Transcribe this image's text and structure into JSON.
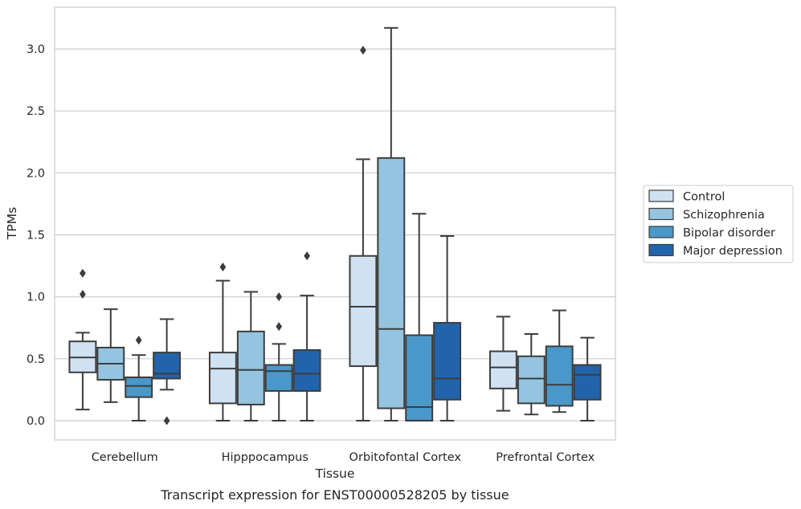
{
  "chart_data": {
    "type": "boxplot",
    "title": "",
    "caption": "Transcript expression for ENST00000528205 by tissue",
    "xlabel": "Tissue",
    "ylabel": "TPMs",
    "ylim": [
      -0.15,
      3.32
    ],
    "yticks": [
      0.0,
      0.5,
      1.0,
      1.5,
      2.0,
      2.5,
      3.0
    ],
    "ytick_labels": [
      "0.0",
      "0.5",
      "1.0",
      "1.5",
      "2.0",
      "2.5",
      "3.0"
    ],
    "grid": "horizontal",
    "legend_position": "right",
    "categories": [
      "Cerebellum",
      "Hipppocampus",
      "Orbitofontal Cortex",
      "Prefrontal Cortex"
    ],
    "series": [
      {
        "name": "Control",
        "color": "#d0e1f2",
        "boxes": [
          {
            "whislo": 0.09,
            "q1": 0.39,
            "med": 0.51,
            "q3": 0.64,
            "whishi": 0.71,
            "fliers": [
              1.02,
              1.19
            ]
          },
          {
            "whislo": 0.0,
            "q1": 0.14,
            "med": 0.42,
            "q3": 0.55,
            "whishi": 1.13,
            "fliers": [
              1.24
            ]
          },
          {
            "whislo": 0.0,
            "q1": 0.44,
            "med": 0.92,
            "q3": 1.33,
            "whishi": 2.11,
            "fliers": [
              2.99
            ]
          },
          {
            "whislo": 0.08,
            "q1": 0.26,
            "med": 0.43,
            "q3": 0.56,
            "whishi": 0.84,
            "fliers": []
          }
        ]
      },
      {
        "name": "Schizophrenia",
        "color": "#94c4df",
        "boxes": [
          {
            "whislo": 0.15,
            "q1": 0.33,
            "med": 0.46,
            "q3": 0.59,
            "whishi": 0.9,
            "fliers": []
          },
          {
            "whislo": 0.0,
            "q1": 0.13,
            "med": 0.41,
            "q3": 0.72,
            "whishi": 1.04,
            "fliers": []
          },
          {
            "whislo": 0.0,
            "q1": 0.1,
            "med": 0.74,
            "q3": 2.12,
            "whishi": 3.17,
            "fliers": []
          },
          {
            "whislo": 0.05,
            "q1": 0.14,
            "med": 0.34,
            "q3": 0.52,
            "whishi": 0.7,
            "fliers": []
          }
        ]
      },
      {
        "name": "Bipolar disorder",
        "color": "#4a98c9",
        "boxes": [
          {
            "whislo": 0.0,
            "q1": 0.19,
            "med": 0.28,
            "q3": 0.35,
            "whishi": 0.53,
            "fliers": [
              0.65
            ]
          },
          {
            "whislo": 0.0,
            "q1": 0.24,
            "med": 0.4,
            "q3": 0.45,
            "whishi": 0.62,
            "fliers": [
              0.76,
              1.0
            ]
          },
          {
            "whislo": 0.0,
            "q1": 0.0,
            "med": 0.11,
            "q3": 0.69,
            "whishi": 1.67,
            "fliers": []
          },
          {
            "whislo": 0.07,
            "q1": 0.12,
            "med": 0.29,
            "q3": 0.6,
            "whishi": 0.89,
            "fliers": []
          }
        ]
      },
      {
        "name": "Major depression",
        "color": "#2164ab",
        "boxes": [
          {
            "whislo": 0.25,
            "q1": 0.34,
            "med": 0.38,
            "q3": 0.55,
            "whishi": 0.82,
            "fliers": [
              0.0
            ]
          },
          {
            "whislo": 0.0,
            "q1": 0.24,
            "med": 0.38,
            "q3": 0.57,
            "whishi": 1.01,
            "fliers": [
              1.33
            ]
          },
          {
            "whislo": 0.0,
            "q1": 0.17,
            "med": 0.34,
            "q3": 0.79,
            "whishi": 1.49,
            "fliers": []
          },
          {
            "whislo": 0.0,
            "q1": 0.17,
            "med": 0.37,
            "q3": 0.45,
            "whishi": 0.67,
            "fliers": []
          }
        ]
      }
    ]
  }
}
